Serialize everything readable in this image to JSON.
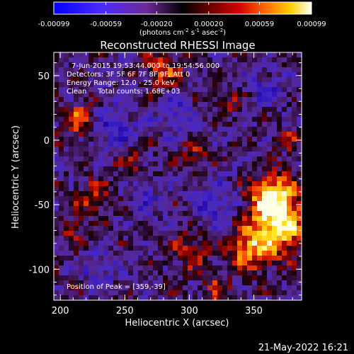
{
  "chart_data": {
    "type": "heatmap",
    "title": "Reconstructed RHESSI Image",
    "xlabel": "Heliocentric X (arcsec)",
    "ylabel": "Heliocentric Y (arcsec)",
    "xlim": [
      195,
      387
    ],
    "ylim": [
      -124,
      68
    ],
    "x_ticks": [
      "200",
      "250",
      "300",
      "350"
    ],
    "y_ticks": [
      "50",
      "0",
      "-50",
      "-100"
    ],
    "colorbar": {
      "ticks": [
        "-0.00099",
        "-0.00059",
        "-0.00020",
        "0.00020",
        "0.00059",
        "0.00099"
      ],
      "range": [
        -0.00099,
        0.00099
      ],
      "units_label": "(photons cm",
      "units_label_html": "(photons cm<tspan dy='-4' font-size='7'>-2</tspan><tspan dy='4'> s</tspan><tspan dy='-4' font-size='7'>-1</tspan><tspan dy='4'> asec</tspan><tspan dy='-4' font-size='7'>-2</tspan><tspan dy='4'>)</tspan>"
    },
    "annotations": [
      "7-Jun-2015 19:53:44.000 to 19:54:56.000",
      "Detectors: 3F 5F 6F 7F 8F 9F, Att 0",
      "Energy Range: 12.0 - 25.0 keV",
      "Clean     Total counts: 1.68E+03"
    ],
    "peak_label": "Position of Peak = [359,-39]",
    "peak_position": [
      359,
      -39
    ]
  },
  "footer": {
    "timestamp": "21-May-2022 16:21"
  }
}
